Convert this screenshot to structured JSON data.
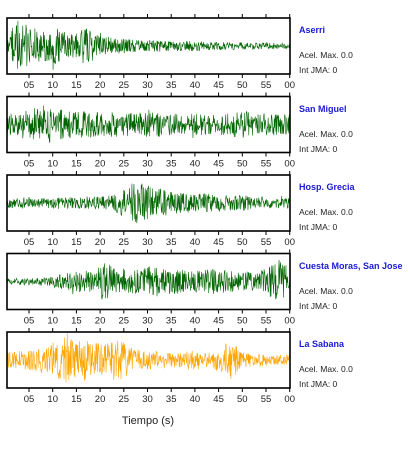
{
  "chart_data": {
    "type": "line",
    "xlabel": "Tiempo (s)",
    "x_ticks": [
      "05",
      "10",
      "15",
      "20",
      "25",
      "30",
      "35",
      "40",
      "45",
      "50",
      "55",
      "00"
    ],
    "grid": false,
    "panels": [
      {
        "station": "Aserri",
        "acel_label": "Acel. Max. 0.0",
        "jma_label": "Int JMA: 0",
        "color": "#006400",
        "envelope": [
          0.25,
          0.95,
          0.85,
          0.65,
          0.6,
          0.7,
          0.55,
          0.45,
          0.75,
          0.5,
          0.35,
          0.3,
          0.28,
          0.25,
          0.22,
          0.25,
          0.2,
          0.18,
          0.2,
          0.2,
          0.17,
          0.15,
          0.15,
          0.15,
          0.14,
          0.13,
          0.12,
          0.12,
          0.12,
          0.12
        ]
      },
      {
        "station": "San Miguel",
        "acel_label": "Acel. Max. 0.0",
        "jma_label": "Int JMA: 0",
        "color": "#006400",
        "envelope": [
          0.35,
          0.55,
          0.6,
          0.7,
          0.75,
          0.6,
          0.55,
          0.5,
          0.55,
          0.5,
          0.45,
          0.5,
          0.45,
          0.45,
          0.5,
          0.5,
          0.45,
          0.45,
          0.4,
          0.45,
          0.45,
          0.4,
          0.4,
          0.45,
          0.55,
          0.5,
          0.45,
          0.4,
          0.4,
          0.4
        ]
      },
      {
        "station": "Hosp. Grecia",
        "acel_label": "Acel. Max. 0.0",
        "jma_label": "Int JMA: 0",
        "color": "#006400",
        "envelope": [
          0.2,
          0.2,
          0.22,
          0.2,
          0.2,
          0.2,
          0.22,
          0.22,
          0.25,
          0.25,
          0.28,
          0.35,
          0.55,
          0.85,
          0.75,
          0.6,
          0.55,
          0.45,
          0.4,
          0.35,
          0.4,
          0.35,
          0.3,
          0.3,
          0.32,
          0.25,
          0.22,
          0.22,
          0.2,
          0.2
        ]
      },
      {
        "station": "Cuesta Moras, San Jose",
        "acel_label": "Acel. Max. 0.0",
        "jma_label": "Int JMA: 0",
        "color": "#006400",
        "envelope": [
          0.12,
          0.12,
          0.14,
          0.14,
          0.18,
          0.25,
          0.35,
          0.4,
          0.45,
          0.55,
          0.75,
          0.55,
          0.5,
          0.45,
          0.55,
          0.6,
          0.55,
          0.5,
          0.45,
          0.4,
          0.45,
          0.5,
          0.45,
          0.4,
          0.35,
          0.4,
          0.45,
          0.6,
          0.9,
          0.5
        ]
      },
      {
        "station": "La Sabana",
        "acel_label": "Acel. Max. 0.0",
        "jma_label": "Int JMA: 0",
        "color": "#FFA500",
        "envelope": [
          0.3,
          0.35,
          0.4,
          0.45,
          0.55,
          0.65,
          0.9,
          0.75,
          0.8,
          0.7,
          0.6,
          0.9,
          0.7,
          0.45,
          0.4,
          0.35,
          0.35,
          0.3,
          0.3,
          0.45,
          0.3,
          0.3,
          0.55,
          0.8,
          0.3,
          0.25,
          0.25,
          0.22,
          0.2,
          0.2
        ]
      }
    ]
  }
}
